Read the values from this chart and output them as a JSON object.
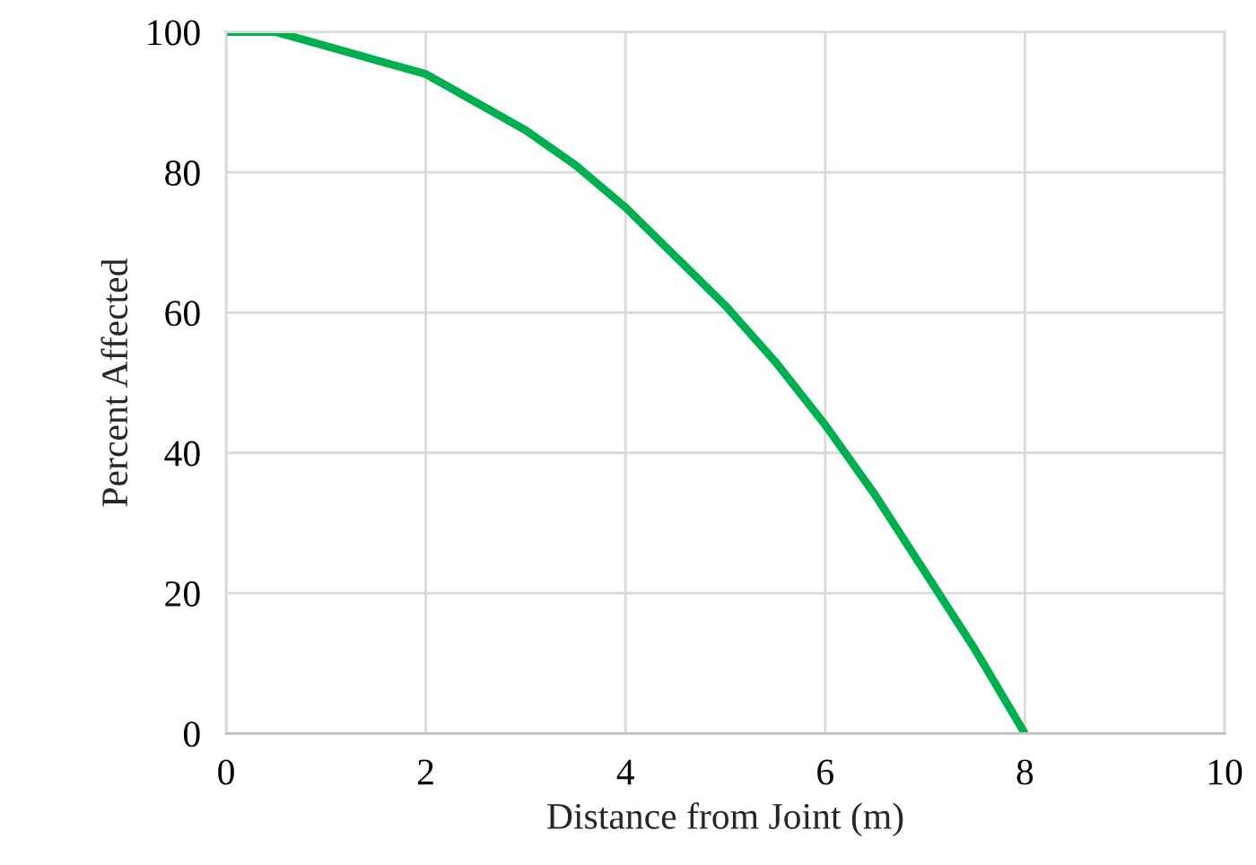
{
  "chart_data": {
    "type": "line",
    "xlabel": "Distance from Joint (m)",
    "ylabel": "Percent Affected",
    "x": [
      0,
      0.5,
      1,
      1.5,
      2,
      2.5,
      3,
      3.5,
      4,
      4.5,
      5,
      5.5,
      6,
      6.5,
      7,
      7.5,
      8
    ],
    "series": [
      {
        "color": "#00b050",
        "values": [
          100,
          100,
          98,
          96,
          94,
          90,
          86,
          81,
          75,
          68,
          61,
          53,
          44,
          34,
          23,
          12,
          0
        ]
      }
    ],
    "xlim": [
      0,
      10
    ],
    "xticks": [
      0,
      2,
      4,
      6,
      8,
      10
    ],
    "ylim": [
      0,
      100
    ],
    "yticks": [
      0,
      20,
      40,
      60,
      80,
      100
    ],
    "grid": true,
    "marker": "none",
    "line_style": "solid"
  }
}
